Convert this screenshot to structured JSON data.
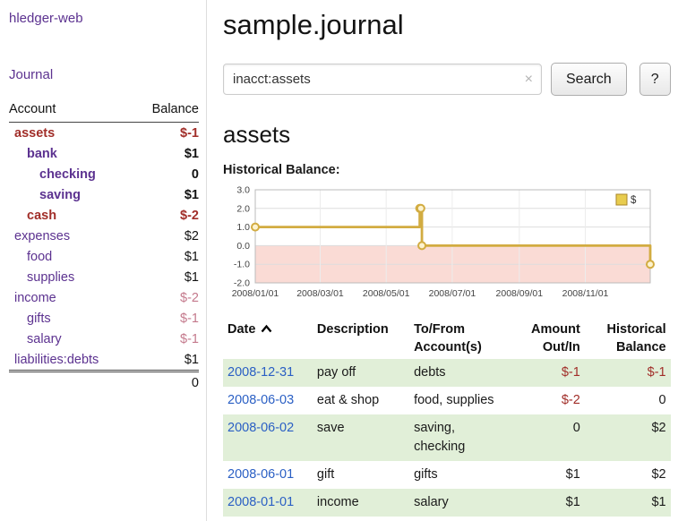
{
  "sidebar": {
    "app_title": "hledger-web",
    "journal_link": "Journal",
    "table": {
      "account_header": "Account",
      "balance_header": "Balance"
    },
    "accounts": [
      {
        "name": "assets",
        "balance": "$-1",
        "indent": 1,
        "bold": true
      },
      {
        "name": "bank",
        "balance": "$1",
        "indent": 2,
        "bold": true
      },
      {
        "name": "checking",
        "balance": "0",
        "indent": 3,
        "bold": true
      },
      {
        "name": "saving",
        "balance": "$1",
        "indent": 3,
        "bold": true
      },
      {
        "name": "cash",
        "balance": "$-2",
        "indent": 2,
        "bold": true
      },
      {
        "name": "expenses",
        "balance": "$2",
        "indent": 1,
        "bold": false
      },
      {
        "name": "food",
        "balance": "$1",
        "indent": 2,
        "bold": false
      },
      {
        "name": "supplies",
        "balance": "$1",
        "indent": 2,
        "bold": false
      },
      {
        "name": "income",
        "balance": "$-2",
        "indent": 1,
        "bold": false
      },
      {
        "name": "gifts",
        "balance": "$-1",
        "indent": 2,
        "bold": false
      },
      {
        "name": "salary",
        "balance": "$-1",
        "indent": 2,
        "bold": false
      },
      {
        "name": "liabilities:debts",
        "balance": "$1",
        "indent": 1,
        "bold": false
      }
    ],
    "total": "0"
  },
  "main": {
    "title": "sample.journal",
    "search": {
      "value": "inacct:assets",
      "clear_icon": "×",
      "button": "Search",
      "help_button": "?"
    },
    "account_heading": "assets",
    "chart_label": "Historical Balance:"
  },
  "chart_data": {
    "type": "line",
    "title": "Historical Balance",
    "step": true,
    "legend": [
      {
        "label": "$"
      }
    ],
    "legend_position": "top-right",
    "grid": true,
    "ylim": [
      -2.0,
      3.0
    ],
    "yticks": [
      "3.0",
      "2.0",
      "1.0",
      "0.0",
      "-1.0",
      "-2.0"
    ],
    "xrange": [
      "2008-01-01",
      "2008-12-31"
    ],
    "xticks": [
      {
        "date": "2008-01-01",
        "label": "2008/01/01"
      },
      {
        "date": "2008-03-01",
        "label": "2008/03/01"
      },
      {
        "date": "2008-05-01",
        "label": "2008/05/01"
      },
      {
        "date": "2008-07-01",
        "label": "2008/07/01"
      },
      {
        "date": "2008-09-01",
        "label": "2008/09/01"
      },
      {
        "date": "2008-11-01",
        "label": "2008/11/01"
      }
    ],
    "points": [
      {
        "date": "2008-01-01",
        "value": 1
      },
      {
        "date": "2008-06-01",
        "value": 2
      },
      {
        "date": "2008-06-02",
        "value": 2
      },
      {
        "date": "2008-06-03",
        "value": 0
      },
      {
        "date": "2008-12-31",
        "value": -1
      }
    ]
  },
  "register": {
    "headers": {
      "date": "Date",
      "description": "Description",
      "accounts": "To/From Account(s)",
      "amount": "Amount Out/In",
      "balance": "Historical Balance"
    },
    "rows": [
      {
        "date": "2008-12-31",
        "description": "pay off",
        "accounts": "debts",
        "amount": "$-1",
        "balance": "$-1"
      },
      {
        "date": "2008-06-03",
        "description": "eat & shop",
        "accounts": "food, supplies",
        "amount": "$-2",
        "balance": "0"
      },
      {
        "date": "2008-06-02",
        "description": "save",
        "accounts": "saving, checking",
        "amount": "0",
        "balance": "$2"
      },
      {
        "date": "2008-06-01",
        "description": "gift",
        "accounts": "gifts",
        "amount": "$1",
        "balance": "$2"
      },
      {
        "date": "2008-01-01",
        "description": "income",
        "accounts": "salary",
        "amount": "$1",
        "balance": "$1"
      }
    ]
  },
  "colors": {
    "purple": "#5c3290",
    "link_blue": "#2a5fc4",
    "negative_red": "#a12e29",
    "rose": "#c4798c",
    "row_green": "#e1efd8",
    "chart_line_gold": "#d2ac41",
    "chart_legend_gold": "#e8cc4e",
    "chart_negative_pink": "#fadbd5"
  }
}
